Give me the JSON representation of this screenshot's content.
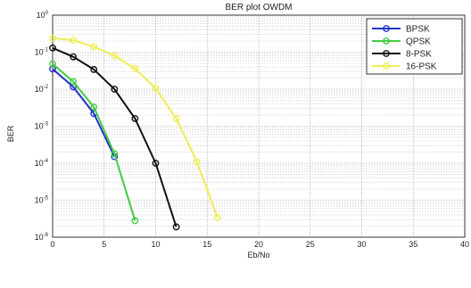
{
  "chart_data": {
    "type": "line",
    "title": "BER plot OWDM",
    "xlabel": "Eb/No",
    "ylabel": "BER",
    "xlim": [
      0,
      40
    ],
    "ylim_exp": [
      -6,
      0
    ],
    "yscale": "log",
    "grid": true,
    "legend_position": "top-right",
    "x_ticks": [
      0,
      5,
      10,
      15,
      20,
      25,
      30,
      35,
      40
    ],
    "y_tick_exponents": [
      0,
      -1,
      -2,
      -3,
      -4,
      -5,
      -6
    ],
    "series": [
      {
        "name": "BPSK",
        "color": "#2233cc",
        "marker": "circle",
        "x": [
          0,
          2,
          4,
          6
        ],
        "y": [
          0.035,
          0.0115,
          0.0022,
          0.00015
        ]
      },
      {
        "name": "QPSK",
        "color": "#44cc44",
        "marker": "circle",
        "x": [
          0,
          2,
          4,
          6,
          8
        ],
        "y": [
          0.048,
          0.016,
          0.0033,
          0.00018,
          2.8e-06
        ]
      },
      {
        "name": "8-PSK",
        "color": "#111111",
        "marker": "circle",
        "x": [
          0,
          2,
          4,
          6,
          8,
          10,
          12
        ],
        "y": [
          0.13,
          0.075,
          0.034,
          0.01,
          0.0016,
          0.0001,
          1.9e-06
        ]
      },
      {
        "name": "16-PSK",
        "color": "#eeee55",
        "marker": "circle",
        "x": [
          0,
          2,
          4,
          6,
          8,
          10,
          12,
          14,
          16
        ],
        "y": [
          0.24,
          0.21,
          0.14,
          0.08,
          0.036,
          0.0105,
          0.0016,
          0.00011,
          3.4e-06
        ]
      }
    ]
  }
}
